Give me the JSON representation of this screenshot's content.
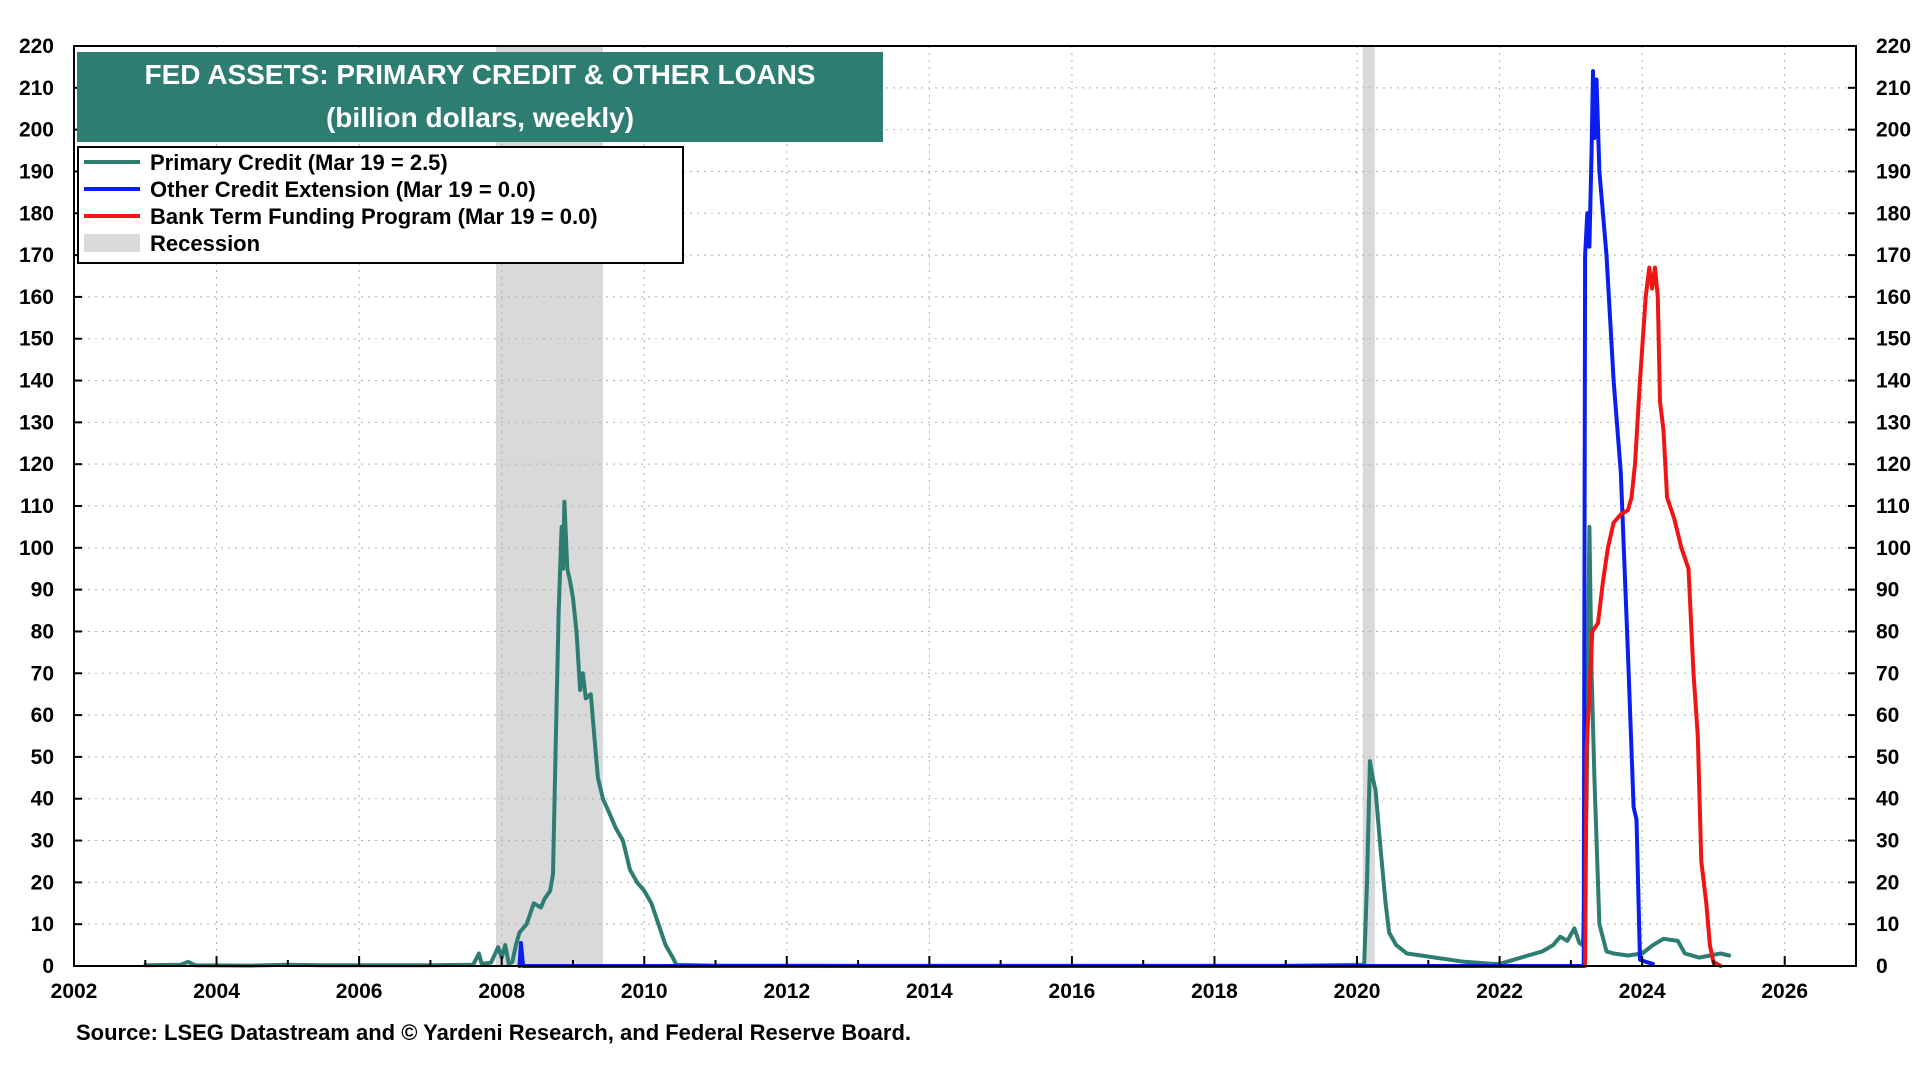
{
  "chart_data": {
    "type": "line",
    "title": "FED ASSETS: PRIMARY CREDIT & OTHER LOANS",
    "subtitle": "(billion dollars, weekly)",
    "source": "Source: LSEG Datastream and © Yardeni Research, and Federal Reserve Board.",
    "xlim": [
      2002,
      2027
    ],
    "ylim": [
      0,
      220
    ],
    "x_ticks": [
      2002,
      2004,
      2006,
      2008,
      2010,
      2012,
      2014,
      2016,
      2018,
      2020,
      2022,
      2024,
      2026
    ],
    "y_ticks": [
      0,
      10,
      20,
      30,
      40,
      50,
      60,
      70,
      80,
      90,
      100,
      110,
      120,
      130,
      140,
      150,
      160,
      170,
      180,
      190,
      200,
      210,
      220
    ],
    "grid": true,
    "legend_position": "top-left",
    "legend": [
      {
        "label": "Primary Credit (Mar 19 = 2.5)",
        "color": "#2e7d72",
        "kind": "line"
      },
      {
        "label": "Other Credit Extension (Mar 19 = 0.0)",
        "color": "#0a1ef0",
        "kind": "line"
      },
      {
        "label": "Bank Term Funding Program (Mar 19 = 0.0)",
        "color": "#f01414",
        "kind": "line"
      },
      {
        "label": "Recession",
        "color": "#d9d9d9",
        "kind": "area"
      }
    ],
    "recessions": [
      [
        2007.92,
        2009.42
      ],
      [
        2020.08,
        2020.25
      ]
    ],
    "series": [
      {
        "name": "Primary Credit",
        "color": "#2e7d72",
        "points": [
          [
            2003.0,
            0.2
          ],
          [
            2003.5,
            0.3
          ],
          [
            2003.6,
            1.0
          ],
          [
            2003.7,
            0.2
          ],
          [
            2004.5,
            0.1
          ],
          [
            2005.0,
            0.3
          ],
          [
            2005.5,
            0.2
          ],
          [
            2006.0,
            0.2
          ],
          [
            2006.5,
            0.2
          ],
          [
            2007.0,
            0.2
          ],
          [
            2007.6,
            0.3
          ],
          [
            2007.68,
            3.0
          ],
          [
            2007.72,
            0.5
          ],
          [
            2007.85,
            0.8
          ],
          [
            2007.95,
            4.5
          ],
          [
            2008.0,
            2.0
          ],
          [
            2008.05,
            5.0
          ],
          [
            2008.1,
            0.5
          ],
          [
            2008.15,
            1.0
          ],
          [
            2008.2,
            5.0
          ],
          [
            2008.25,
            8.0
          ],
          [
            2008.35,
            10.0
          ],
          [
            2008.45,
            15.0
          ],
          [
            2008.55,
            14.0
          ],
          [
            2008.6,
            16.0
          ],
          [
            2008.68,
            18.0
          ],
          [
            2008.72,
            22.0
          ],
          [
            2008.76,
            55.0
          ],
          [
            2008.8,
            85.0
          ],
          [
            2008.84,
            105.0
          ],
          [
            2008.86,
            95.0
          ],
          [
            2008.88,
            111.0
          ],
          [
            2008.92,
            95.0
          ],
          [
            2008.96,
            92.0
          ],
          [
            2009.0,
            88.0
          ],
          [
            2009.05,
            80.0
          ],
          [
            2009.1,
            66.0
          ],
          [
            2009.14,
            70.0
          ],
          [
            2009.18,
            64.0
          ],
          [
            2009.25,
            65.0
          ],
          [
            2009.3,
            55.0
          ],
          [
            2009.35,
            45.0
          ],
          [
            2009.42,
            40.0
          ],
          [
            2009.5,
            37.0
          ],
          [
            2009.6,
            33.0
          ],
          [
            2009.7,
            30.0
          ],
          [
            2009.8,
            23.0
          ],
          [
            2009.9,
            20.0
          ],
          [
            2010.0,
            18.0
          ],
          [
            2010.1,
            15.0
          ],
          [
            2010.2,
            10.0
          ],
          [
            2010.3,
            5.0
          ],
          [
            2010.4,
            2.0
          ],
          [
            2010.45,
            0.3
          ],
          [
            2011.0,
            0.1
          ],
          [
            2013.0,
            0.05
          ],
          [
            2016.0,
            0.05
          ],
          [
            2019.0,
            0.05
          ],
          [
            2020.1,
            0.3
          ],
          [
            2020.14,
            20.0
          ],
          [
            2020.18,
            49.0
          ],
          [
            2020.22,
            45.0
          ],
          [
            2020.26,
            42.0
          ],
          [
            2020.32,
            30.0
          ],
          [
            2020.4,
            15.0
          ],
          [
            2020.45,
            8.0
          ],
          [
            2020.55,
            5.0
          ],
          [
            2020.7,
            3.0
          ],
          [
            2020.9,
            2.5
          ],
          [
            2021.1,
            2.0
          ],
          [
            2021.3,
            1.5
          ],
          [
            2021.5,
            1.0
          ],
          [
            2021.7,
            0.8
          ],
          [
            2021.9,
            0.5
          ],
          [
            2022.0,
            0.5
          ],
          [
            2022.2,
            1.5
          ],
          [
            2022.4,
            2.5
          ],
          [
            2022.6,
            3.5
          ],
          [
            2022.75,
            5.0
          ],
          [
            2022.85,
            7.0
          ],
          [
            2022.95,
            6.0
          ],
          [
            2023.05,
            9.0
          ],
          [
            2023.12,
            5.5
          ],
          [
            2023.17,
            5.0
          ],
          [
            2023.22,
            40.0
          ],
          [
            2023.26,
            105.0
          ],
          [
            2023.29,
            70.0
          ],
          [
            2023.33,
            45.0
          ],
          [
            2023.4,
            10.0
          ],
          [
            2023.5,
            3.5
          ],
          [
            2023.6,
            3.0
          ],
          [
            2023.8,
            2.5
          ],
          [
            2024.0,
            3.0
          ],
          [
            2024.15,
            5.0
          ],
          [
            2024.3,
            6.5
          ],
          [
            2024.5,
            6.0
          ],
          [
            2024.6,
            3.0
          ],
          [
            2024.8,
            2.0
          ],
          [
            2024.95,
            2.5
          ],
          [
            2025.1,
            3.0
          ],
          [
            2025.22,
            2.5
          ]
        ]
      },
      {
        "name": "Other Credit Extension",
        "color": "#0a1ef0",
        "points": [
          [
            2008.25,
            0.0
          ],
          [
            2008.27,
            5.5
          ],
          [
            2008.3,
            0.0
          ],
          [
            2023.18,
            0.0
          ],
          [
            2023.2,
            170.0
          ],
          [
            2023.23,
            180.0
          ],
          [
            2023.26,
            172.0
          ],
          [
            2023.29,
            195.0
          ],
          [
            2023.31,
            214.0
          ],
          [
            2023.33,
            198.0
          ],
          [
            2023.36,
            212.0
          ],
          [
            2023.4,
            190.0
          ],
          [
            2023.5,
            170.0
          ],
          [
            2023.6,
            140.0
          ],
          [
            2023.7,
            118.0
          ],
          [
            2023.8,
            75.0
          ],
          [
            2023.88,
            38.0
          ],
          [
            2023.92,
            35.0
          ],
          [
            2023.97,
            1.5
          ],
          [
            2024.05,
            1.0
          ],
          [
            2024.15,
            0.5
          ]
        ]
      },
      {
        "name": "Bank Term Funding Program",
        "color": "#f01414",
        "points": [
          [
            2023.2,
            0.0
          ],
          [
            2023.22,
            52.0
          ],
          [
            2023.26,
            65.0
          ],
          [
            2023.3,
            80.0
          ],
          [
            2023.38,
            82.0
          ],
          [
            2023.45,
            92.0
          ],
          [
            2023.52,
            100.0
          ],
          [
            2023.6,
            106.0
          ],
          [
            2023.7,
            108.0
          ],
          [
            2023.8,
            109.0
          ],
          [
            2023.85,
            112.0
          ],
          [
            2023.9,
            120.0
          ],
          [
            2023.97,
            140.0
          ],
          [
            2024.05,
            160.0
          ],
          [
            2024.1,
            167.0
          ],
          [
            2024.14,
            162.0
          ],
          [
            2024.18,
            167.0
          ],
          [
            2024.22,
            160.0
          ],
          [
            2024.25,
            135.0
          ],
          [
            2024.3,
            128.0
          ],
          [
            2024.35,
            112.0
          ],
          [
            2024.45,
            107.0
          ],
          [
            2024.55,
            100.0
          ],
          [
            2024.65,
            95.0
          ],
          [
            2024.72,
            70.0
          ],
          [
            2024.78,
            55.0
          ],
          [
            2024.83,
            25.0
          ],
          [
            2024.9,
            15.0
          ],
          [
            2024.95,
            5.0
          ],
          [
            2025.0,
            1.0
          ],
          [
            2025.1,
            0.0
          ]
        ]
      }
    ]
  }
}
